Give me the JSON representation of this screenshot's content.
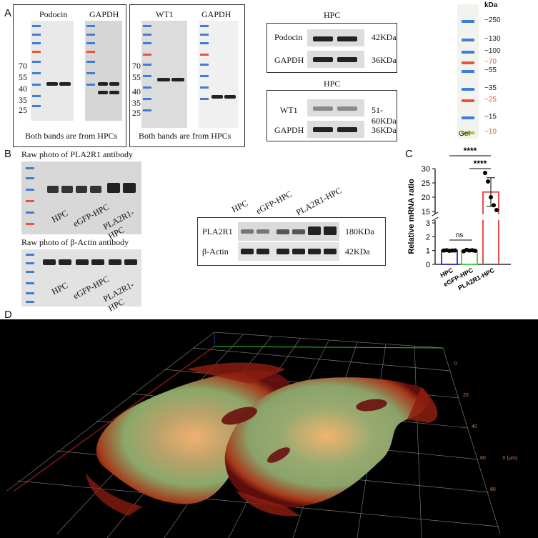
{
  "panel_labels": {
    "a": "A",
    "b": "B",
    "c": "C",
    "d": "D"
  },
  "panelA": {
    "blot1": {
      "label1": "Podocin",
      "label2": "GAPDH",
      "markers": [
        "70",
        "55",
        "40",
        "35",
        "25"
      ],
      "caption": "Both bands are from HPCs"
    },
    "blot2": {
      "label1": "WT1",
      "label2": "GAPDH",
      "markers": [
        "70",
        "55",
        "40",
        "35",
        "25"
      ],
      "caption": "Both bands are from HPCs"
    },
    "hpc1": {
      "title": "HPC",
      "rows": [
        {
          "protein": "Podocin",
          "size": "42KDa"
        },
        {
          "protein": "GAPDH",
          "size": "36KDa"
        }
      ]
    },
    "hpc2": {
      "title": "HPC",
      "rows": [
        {
          "protein": "WT1",
          "size": "51-60KDa"
        },
        {
          "protein": "GAPDH",
          "size": "36KDa"
        }
      ]
    },
    "ladder": {
      "unit": "kDa",
      "marks": [
        "~250",
        "~130",
        "~100",
        "~70",
        "~55",
        "~35",
        "~25",
        "~15",
        "~10"
      ],
      "footer": "Gel",
      "colors": {
        "normal": "#3d7fd4",
        "red": "#e8563a",
        "green": "#b5c431"
      }
    }
  },
  "panelB": {
    "raw1_title": "Raw photo of PLA2R1 antibody",
    "raw2_title": "Raw photo of β-Actin antibody",
    "lanes": [
      "HPC",
      "eGFP-HPC",
      "PLA2R1-HPC"
    ],
    "crop": {
      "lanes": [
        "HPC",
        "eGFP-HPC",
        "PLA2R1-HPC"
      ],
      "rows": [
        {
          "protein": "PLA2R1",
          "size": "180KDa"
        },
        {
          "protein": "β-Actin",
          "size": "42KDa"
        }
      ]
    }
  },
  "chart_data": {
    "type": "bar",
    "title": "",
    "ylabel": "Relative mRNA ratio",
    "categories": [
      "HPC",
      "eGFP-HPC",
      "PLA2R1-HPC"
    ],
    "values": [
      1.0,
      1.0,
      21.8
    ],
    "errors": [
      0.05,
      0.07,
      5.0
    ],
    "points": [
      [
        1.0,
        1.02,
        0.98,
        1.0,
        1.01
      ],
      [
        0.95,
        1.05,
        1.0,
        1.02,
        0.98
      ],
      [
        28.5,
        25.5,
        20.0,
        17.2,
        15.5
      ]
    ],
    "colors": [
      "#3b3bd1",
      "#4fcf4f",
      "#e8504a"
    ],
    "yticks_lower": [
      "0",
      "1",
      "2",
      "3"
    ],
    "yticks_upper": [
      "15",
      "20",
      "25",
      "30"
    ],
    "ylim_lower": [
      0,
      3
    ],
    "ylim_upper": [
      15,
      30
    ],
    "annotations": [
      "ns",
      "****",
      "****"
    ]
  },
  "panelD": {
    "axis_ticks": [
      "0",
      "20",
      "40",
      "60",
      "80"
    ],
    "axis_label": "X (μm)"
  }
}
